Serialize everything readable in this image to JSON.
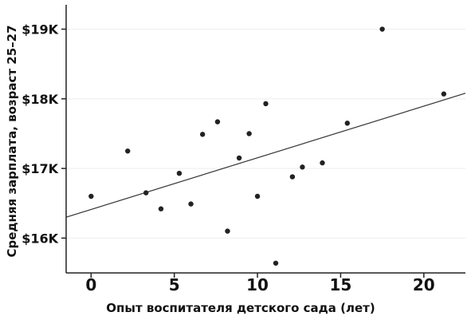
{
  "chart_data": {
    "type": "scatter",
    "title": "",
    "xlabel": "Опыт воспитателя детского сада (лет)",
    "ylabel": "Средняя зарплата, возраст 25–27",
    "xlim": [
      -1.5,
      22.5
    ],
    "ylim": [
      15.5,
      19.35
    ],
    "x_ticks": [
      0,
      5,
      10,
      15,
      20
    ],
    "x_tick_labels": [
      "0",
      "5",
      "10",
      "15",
      "20"
    ],
    "y_ticks": [
      16,
      17,
      18,
      19
    ],
    "y_tick_labels": [
      "$16K",
      "$17K",
      "$18K",
      "$19K"
    ],
    "y_unit": "thousand USD",
    "grid": true,
    "legend": "none",
    "colors": {
      "points": "#222222",
      "trend_line": "#333333",
      "axis": "#222222",
      "grid": "#eeeeee"
    },
    "points": [
      {
        "x": 0.0,
        "y": 16.6
      },
      {
        "x": 2.2,
        "y": 17.25
      },
      {
        "x": 3.3,
        "y": 16.65
      },
      {
        "x": 4.2,
        "y": 16.42
      },
      {
        "x": 5.3,
        "y": 16.93
      },
      {
        "x": 6.0,
        "y": 16.49
      },
      {
        "x": 6.7,
        "y": 17.49
      },
      {
        "x": 7.6,
        "y": 17.67
      },
      {
        "x": 8.2,
        "y": 16.1
      },
      {
        "x": 8.9,
        "y": 17.15
      },
      {
        "x": 9.5,
        "y": 17.5
      },
      {
        "x": 10.0,
        "y": 16.6
      },
      {
        "x": 10.5,
        "y": 17.93
      },
      {
        "x": 11.1,
        "y": 15.64
      },
      {
        "x": 12.1,
        "y": 16.88
      },
      {
        "x": 12.7,
        "y": 17.02
      },
      {
        "x": 13.9,
        "y": 17.08
      },
      {
        "x": 15.4,
        "y": 17.65
      },
      {
        "x": 17.5,
        "y": 19.0
      },
      {
        "x": 21.2,
        "y": 18.07
      }
    ],
    "trend_line": {
      "x": [
        -1.5,
        22.5
      ],
      "y": [
        16.3,
        18.08
      ]
    }
  }
}
